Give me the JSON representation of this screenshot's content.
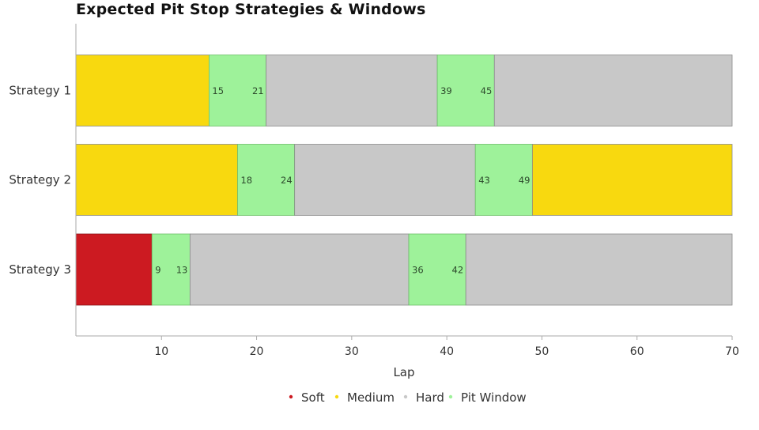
{
  "chart_data": {
    "type": "bar",
    "orientation": "horizontal",
    "stacked": true,
    "title": "Expected Pit Stop Strategies & Windows",
    "xlabel": "Lap",
    "ylabel": "",
    "xlim": [
      1,
      70
    ],
    "xticks": [
      10,
      20,
      30,
      40,
      50,
      60,
      70
    ],
    "grid": false,
    "legend_position": "bottom-center",
    "colors": {
      "Soft": "#cc1a21",
      "Medium": "#f8d90f",
      "Hard": "#c8c8c8",
      "Pit Window": "#9ef29a"
    },
    "legend": [
      "Soft",
      "Medium",
      "Hard",
      "Pit Window"
    ],
    "categories": [
      "Strategy 1",
      "Strategy 2",
      "Strategy 3"
    ],
    "strategies": [
      {
        "name": "Strategy 1",
        "segments": [
          {
            "compound": "Medium",
            "start": 1,
            "end": 15
          },
          {
            "compound": "Pit Window",
            "start": 15,
            "end": 21,
            "labels": [
              "15",
              "21"
            ]
          },
          {
            "compound": "Hard",
            "start": 21,
            "end": 39
          },
          {
            "compound": "Pit Window",
            "start": 39,
            "end": 45,
            "labels": [
              "39",
              "45"
            ]
          },
          {
            "compound": "Hard",
            "start": 45,
            "end": 70
          }
        ]
      },
      {
        "name": "Strategy 2",
        "segments": [
          {
            "compound": "Medium",
            "start": 1,
            "end": 18
          },
          {
            "compound": "Pit Window",
            "start": 18,
            "end": 24,
            "labels": [
              "18",
              "24"
            ]
          },
          {
            "compound": "Hard",
            "start": 24,
            "end": 43
          },
          {
            "compound": "Pit Window",
            "start": 43,
            "end": 49,
            "labels": [
              "43",
              "49"
            ]
          },
          {
            "compound": "Medium",
            "start": 49,
            "end": 70
          }
        ]
      },
      {
        "name": "Strategy 3",
        "segments": [
          {
            "compound": "Soft",
            "start": 1,
            "end": 9
          },
          {
            "compound": "Pit Window",
            "start": 9,
            "end": 13,
            "labels": [
              "9",
              "13"
            ]
          },
          {
            "compound": "Hard",
            "start": 13,
            "end": 36
          },
          {
            "compound": "Pit Window",
            "start": 36,
            "end": 42,
            "labels": [
              "36",
              "42"
            ]
          },
          {
            "compound": "Hard",
            "start": 42,
            "end": 70
          }
        ]
      }
    ]
  }
}
